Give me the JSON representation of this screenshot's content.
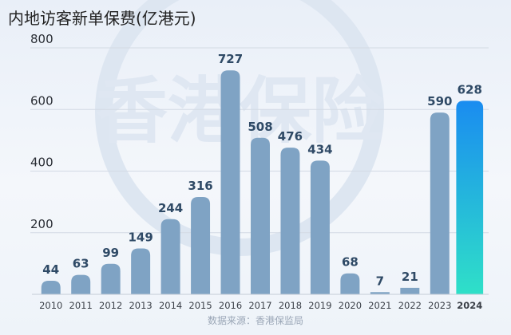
{
  "chart_data": {
    "type": "bar",
    "title": "内地访客新单保费(亿港元)",
    "categories": [
      "2010",
      "2011",
      "2012",
      "2013",
      "2014",
      "2015",
      "2016",
      "2017",
      "2018",
      "2019",
      "2020",
      "2021",
      "2022",
      "2023",
      "2024"
    ],
    "values": [
      44,
      63,
      99,
      149,
      244,
      316,
      727,
      508,
      476,
      434,
      68,
      7,
      21,
      590,
      628
    ],
    "ylim": [
      0,
      800
    ],
    "yticks": [
      200,
      400,
      600,
      800
    ],
    "xlabel": "",
    "ylabel": "",
    "grid": true,
    "highlight_category": "2024",
    "source": "数据来源：香港保监局",
    "watermark": "香港保险",
    "colors": {
      "bar": "#7fa3c4",
      "highlight_top": "#1a8cf0",
      "highlight_bottom": "#2fe0c8",
      "highlight_label": "#1f7fe0",
      "label": "#2f4a66"
    }
  }
}
